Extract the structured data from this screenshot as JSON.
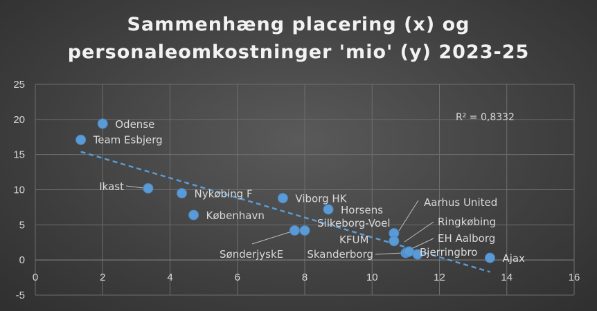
{
  "chart_data": {
    "type": "scatter",
    "title_lines": [
      "Sammenhæng placering (x) og",
      "personaleomkostninger 'mio' (y) 2023-25"
    ],
    "xlabel": "",
    "ylabel": "",
    "xlim": [
      0,
      16
    ],
    "ylim": [
      -5,
      25
    ],
    "x_ticks": [
      "0",
      "2",
      "4",
      "6",
      "8",
      "10",
      "12",
      "14",
      "16"
    ],
    "y_ticks": [
      "25",
      "20",
      "15",
      "10",
      "5",
      "0",
      "-5"
    ],
    "grid": true,
    "series": [
      {
        "color": "#5b9bd5",
        "points": [
          {
            "label": "Team Esbjerg",
            "x": 1.35,
            "y": 17.1
          },
          {
            "label": "Odense",
            "x": 2.0,
            "y": 19.4
          },
          {
            "label": "Ikast",
            "x": 3.35,
            "y": 10.2
          },
          {
            "label": "Nykøbing F",
            "x": 4.35,
            "y": 9.5
          },
          {
            "label": "København",
            "x": 4.7,
            "y": 6.4
          },
          {
            "label": "Viborg HK",
            "x": 7.35,
            "y": 8.8
          },
          {
            "label": "SønderjyskE",
            "x": 7.7,
            "y": 4.2
          },
          {
            "label": "Silkeborg-Voel",
            "x": 8.0,
            "y": 4.2
          },
          {
            "label": "Horsens",
            "x": 8.7,
            "y": 7.2
          },
          {
            "label": "Aarhus United",
            "x": 10.65,
            "y": 3.8
          },
          {
            "label": "KFUM",
            "x": 10.65,
            "y": 2.7
          },
          {
            "label": "Skanderborg",
            "x": 11.0,
            "y": 1.0
          },
          {
            "label": "EH Aalborg",
            "x": 11.05,
            "y": 1.1
          },
          {
            "label": "Ringkøbing",
            "x": 11.1,
            "y": 1.2
          },
          {
            "label": "Bjerringbro",
            "x": 11.35,
            "y": 0.8
          },
          {
            "label": "Ajax",
            "x": 13.5,
            "y": 0.3
          }
        ]
      }
    ],
    "trendline": {
      "type": "linear",
      "x_start": 1.35,
      "y_start": 15.4,
      "x_end": 13.5,
      "y_end": -1.7,
      "color": "#5b9bd5",
      "style": "dashed"
    },
    "r_squared_text": "R² = 0,8332"
  }
}
